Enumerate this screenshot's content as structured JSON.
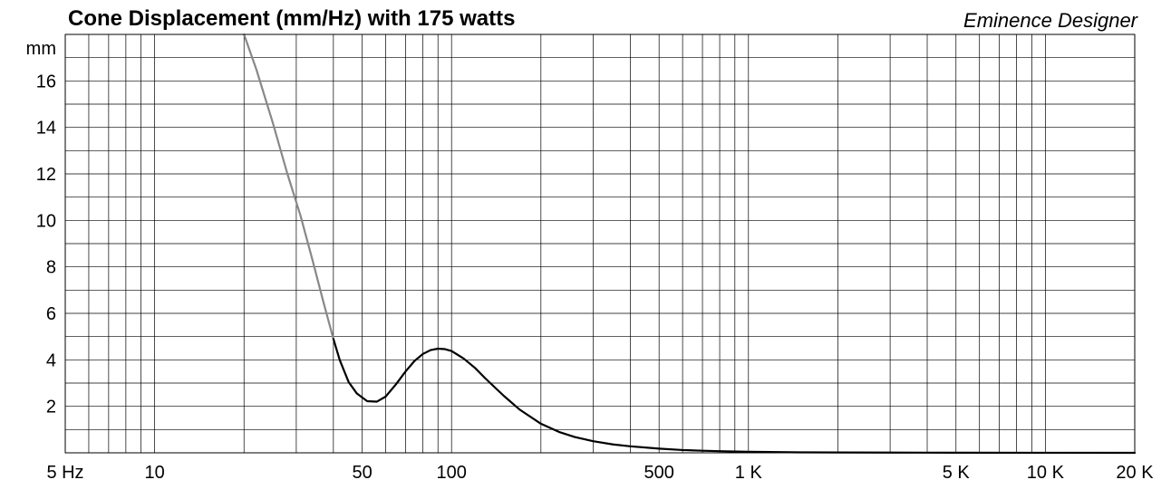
{
  "chart_data": {
    "type": "line",
    "title": "Cone Displacement (mm/Hz) with 175 watts",
    "brand": "Eminence Designer",
    "xlabel": "",
    "ylabel": "mm",
    "xscale": "log",
    "xlim": [
      5,
      20000
    ],
    "ylim": [
      0,
      18
    ],
    "grid": true,
    "x_tick_labels": [
      {
        "value": 5,
        "label": "5 Hz"
      },
      {
        "value": 10,
        "label": "10"
      },
      {
        "value": 50,
        "label": "50"
      },
      {
        "value": 100,
        "label": "100"
      },
      {
        "value": 500,
        "label": "500"
      },
      {
        "value": 1000,
        "label": "1 K"
      },
      {
        "value": 5000,
        "label": "5 K"
      },
      {
        "value": 10000,
        "label": "10 K"
      },
      {
        "value": 20000,
        "label": "20 K"
      }
    ],
    "y_tick_labels": [
      {
        "value": 2,
        "label": "2"
      },
      {
        "value": 4,
        "label": "4"
      },
      {
        "value": 6,
        "label": "6"
      },
      {
        "value": 8,
        "label": "8"
      },
      {
        "value": 10,
        "label": "10"
      },
      {
        "value": 12,
        "label": "12"
      },
      {
        "value": 14,
        "label": "14"
      },
      {
        "value": 16,
        "label": "16"
      }
    ],
    "series": [
      {
        "color": "#888888",
        "x": [
          20,
          22,
          25,
          28,
          31,
          34,
          37,
          40
        ],
        "y": [
          18.0,
          16.5,
          14.2,
          12.0,
          10.2,
          8.3,
          6.5,
          4.9
        ]
      },
      {
        "color": "#000000",
        "x": [
          40,
          42,
          45,
          48,
          52,
          56,
          60,
          65,
          70,
          75,
          80,
          85,
          90,
          95,
          100,
          110,
          120,
          130,
          150,
          170,
          200,
          230,
          260,
          300,
          350,
          400,
          500,
          600,
          700,
          800,
          1000,
          1500,
          2000,
          3000,
          5000,
          10000,
          20000
        ],
        "y": [
          4.9,
          4.0,
          3.05,
          2.55,
          2.22,
          2.2,
          2.42,
          2.95,
          3.5,
          3.95,
          4.25,
          4.42,
          4.48,
          4.46,
          4.38,
          4.05,
          3.65,
          3.2,
          2.45,
          1.85,
          1.25,
          0.9,
          0.68,
          0.5,
          0.36,
          0.28,
          0.18,
          0.12,
          0.09,
          0.07,
          0.045,
          0.02,
          0.015,
          0.01,
          0.005,
          0.002,
          0.001
        ]
      }
    ]
  }
}
